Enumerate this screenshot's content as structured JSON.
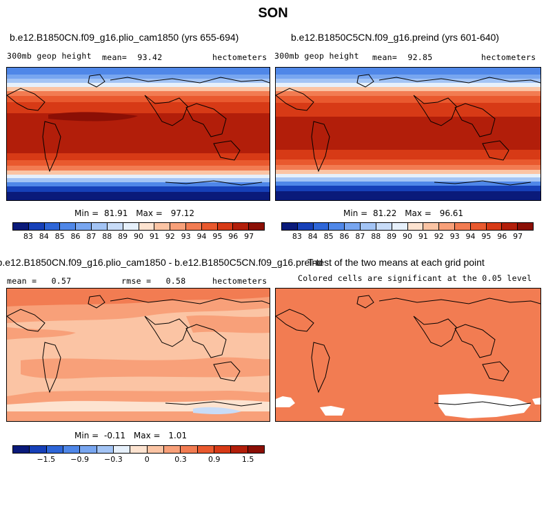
{
  "title": "SON",
  "panels": [
    {
      "title": "b.e12.B1850CN.f09_g16.plio_cam1850 (yrs 655-694)",
      "variable": "300mb geop height",
      "mean_label": "mean=",
      "mean": "93.42",
      "units": "hectometers",
      "min_label": "Min =",
      "min": "81.91",
      "max_label": "Max =",
      "max": "97.12"
    },
    {
      "title": "b.e12.B1850C5CN.f09_g16.preind (yrs 601-640)",
      "variable": "300mb geop height",
      "mean_label": "mean=",
      "mean": "92.85",
      "units": "hectometers",
      "min_label": "Min =",
      "min": "81.22",
      "max_label": "Max =",
      "max": "96.61"
    },
    {
      "title": "b.e12.B1850CN.f09_g16.plio_cam1850 - b.e12.B1850C5CN.f09_g16.preind",
      "mean_label": "mean =",
      "mean": "0.57",
      "rmse_label": "rmse =",
      "rmse": "0.58",
      "units": "hectometers",
      "min_label": "Min =",
      "min": "-0.11",
      "max_label": "Max =",
      "max": "1.01"
    },
    {
      "title": "T-test of the two means at each grid point",
      "subtitle": "Colored cells are significant at the 0.05 level"
    }
  ],
  "colorbar_abs": {
    "labels": [
      "83",
      "84",
      "85",
      "86",
      "87",
      "88",
      "89",
      "90",
      "91",
      "92",
      "93",
      "94",
      "95",
      "96",
      "97"
    ],
    "colors": [
      "#0a1a7a",
      "#1640b8",
      "#2e66d8",
      "#4f87e8",
      "#78a6f0",
      "#a3c4f5",
      "#c8dcf8",
      "#e6f0fb",
      "#fde3d0",
      "#fbc4a4",
      "#f8a079",
      "#f27c52",
      "#e9592e",
      "#d73a16",
      "#b21e0a",
      "#8b0f05"
    ]
  },
  "colorbar_diff": {
    "labels": [
      "-1.5",
      "-0.9",
      "-0.3",
      "0",
      "0.3",
      "0.9",
      "1.5"
    ],
    "colors": [
      "#0a1a7a",
      "#1640b8",
      "#2e66d8",
      "#4f87e8",
      "#78a6f0",
      "#a3c4f5",
      "#e6f0fb",
      "#fde3d0",
      "#fbc4a4",
      "#f8a079",
      "#f27c52",
      "#e9592e",
      "#d73a16",
      "#b21e0a",
      "#8b0f05"
    ]
  },
  "chart_data": [
    {
      "type": "heatmap",
      "title": "b.e12.B1850CN.f09_g16.plio_cam1850 (yrs 655-694)",
      "variable": "300mb geop height",
      "units": "hectometers",
      "mean": 93.42,
      "min": 81.91,
      "max": 97.12,
      "contour_levels": [
        83,
        84,
        85,
        86,
        87,
        88,
        89,
        90,
        91,
        92,
        93,
        94,
        95,
        96,
        97
      ]
    },
    {
      "type": "heatmap",
      "title": "b.e12.B1850C5CN.f09_g16.preind (yrs 601-640)",
      "variable": "300mb geop height",
      "units": "hectometers",
      "mean": 92.85,
      "min": 81.22,
      "max": 96.61,
      "contour_levels": [
        83,
        84,
        85,
        86,
        87,
        88,
        89,
        90,
        91,
        92,
        93,
        94,
        95,
        96,
        97
      ]
    },
    {
      "type": "heatmap",
      "title": "b.e12.B1850CN.f09_g16.plio_cam1850 - b.e12.B1850C5CN.f09_g16.preind",
      "units": "hectometers",
      "mean": 0.57,
      "rmse": 0.58,
      "min": -0.11,
      "max": 1.01,
      "contour_levels": [
        -1.5,
        -0.9,
        -0.3,
        0,
        0.3,
        0.9,
        1.5
      ]
    },
    {
      "type": "heatmap",
      "title": "T-test of the two means at each grid point",
      "subtitle": "Colored cells are significant at the 0.05 level",
      "significance_level": 0.05
    }
  ]
}
